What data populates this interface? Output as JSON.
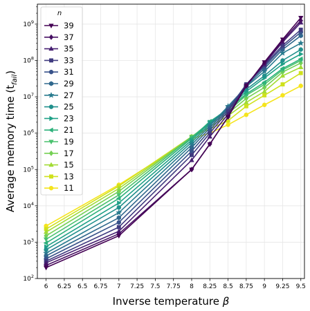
{
  "chart_data": {
    "type": "line",
    "xlabel": "Inverse temperature",
    "xlabel_symbol": "β",
    "ylabel": "Average memory time (t",
    "ylabel_sub": "fail",
    "ylabel_close": ")",
    "x": [
      6,
      7,
      8,
      8.25,
      8.5,
      8.75,
      9,
      9.25,
      9.5
    ],
    "x_ticks": [
      6,
      6.25,
      6.5,
      6.75,
      7,
      7.25,
      7.5,
      7.75,
      8,
      8.25,
      8.5,
      8.75,
      9,
      9.25,
      9.5
    ],
    "x_tick_labels": [
      "6",
      "6.25",
      "6.5",
      "6.75",
      "7",
      "7.25",
      "7.5",
      "7.75",
      "8",
      "8.25",
      "8.5",
      "8.75",
      "9",
      "9.25",
      "9.5"
    ],
    "xlim": [
      5.88,
      9.55
    ],
    "y_scale": "log",
    "ylim_log10": [
      2,
      9.55
    ],
    "y_ticks_exp": [
      2,
      3,
      4,
      5,
      6,
      7,
      8,
      9
    ],
    "y_tick_base": "10",
    "grid": true,
    "legend": {
      "title": "n",
      "placement": "top-left"
    },
    "series": [
      {
        "name": "39",
        "color": "#440154",
        "marker": "triangle-down",
        "values": [
          200,
          1500,
          100000,
          500000,
          2800000,
          20000000,
          90000000,
          380000000,
          1500000000
        ]
      },
      {
        "name": "37",
        "color": "#471063",
        "marker": "diamond",
        "values": [
          230,
          1700,
          100000,
          500000,
          2800000,
          20000000,
          85000000,
          350000000,
          1250000000
        ]
      },
      {
        "name": "35",
        "color": "#461f71",
        "marker": "triangle-up",
        "values": [
          270,
          2000,
          180000,
          800000,
          3300000,
          21000000,
          80000000,
          320000000,
          1100000000
        ]
      },
      {
        "name": "33",
        "color": "#3f3a7f",
        "marker": "square",
        "values": [
          300,
          2600,
          250000,
          1000000,
          4000000,
          22000000,
          75000000,
          260000000,
          700000000
        ]
      },
      {
        "name": "31",
        "color": "#38528a",
        "marker": "circle",
        "values": [
          350,
          3500,
          320000,
          1200000,
          4500000,
          22000000,
          68000000,
          230000000,
          600000000
        ]
      },
      {
        "name": "29",
        "color": "#30688d",
        "marker": "hexagon",
        "values": [
          420,
          4700,
          400000,
          1400000,
          5000000,
          20000000,
          60000000,
          200000000,
          480000000
        ]
      },
      {
        "name": "27",
        "color": "#287b8e",
        "marker": "star",
        "values": [
          500,
          6500,
          480000,
          1600000,
          5500000,
          19000000,
          50000000,
          160000000,
          300000000
        ]
      },
      {
        "name": "25",
        "color": "#20908c",
        "marker": "circle",
        "values": [
          620,
          9000,
          560000,
          1800000,
          5000000,
          16000000,
          38000000,
          100000000,
          200000000
        ]
      },
      {
        "name": "23",
        "color": "#1fa187",
        "marker": "triangle-right",
        "values": [
          750,
          12000,
          640000,
          2000000,
          4800000,
          14000000,
          33000000,
          80000000,
          150000000
        ]
      },
      {
        "name": "21",
        "color": "#2db17b",
        "marker": "triangle-left",
        "values": [
          950,
          16000,
          720000,
          2100000,
          4500000,
          12000000,
          25000000,
          60000000,
          110000000
        ]
      },
      {
        "name": "19",
        "color": "#49c16d",
        "marker": "triangle-down",
        "values": [
          1200,
          20000,
          780000,
          2000000,
          4000000,
          11000000,
          22000000,
          55000000,
          100000000
        ]
      },
      {
        "name": "17",
        "color": "#75d054",
        "marker": "diamond",
        "values": [
          1500,
          25000,
          800000,
          1800000,
          3500000,
          9000000,
          18000000,
          48000000,
          85000000
        ]
      },
      {
        "name": "15",
        "color": "#a2db34",
        "marker": "triangle-up",
        "values": [
          1900,
          30000,
          800000,
          1500000,
          3000000,
          7000000,
          14000000,
          38000000,
          65000000
        ]
      },
      {
        "name": "13",
        "color": "#cfe11c",
        "marker": "square",
        "values": [
          2300,
          35000,
          800000,
          1300000,
          2200000,
          5500000,
          11000000,
          22000000,
          45000000
        ]
      },
      {
        "name": "11",
        "color": "#f5e41d",
        "marker": "circle",
        "values": [
          2800,
          38000,
          700000,
          1000000,
          1700000,
          3200000,
          6000000,
          11000000,
          20000000
        ]
      }
    ]
  }
}
